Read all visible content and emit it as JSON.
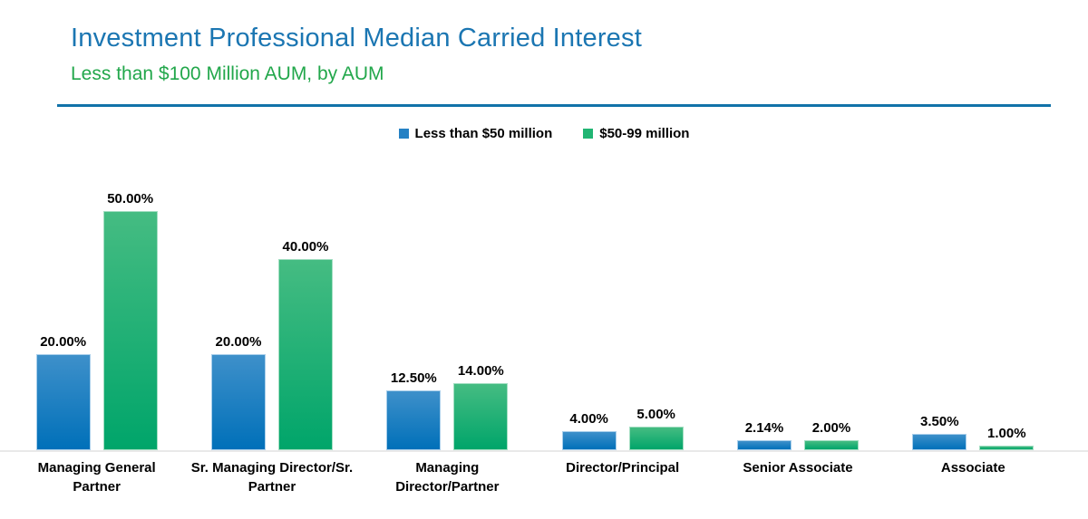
{
  "header": {
    "title": "Investment Professional Median Carried Interest",
    "subtitle": "Less than $100 Million AUM, by AUM",
    "title_color": "#1b76b2",
    "subtitle_color": "#22a74b",
    "divider_color": "#1172a9"
  },
  "chart_data": {
    "type": "bar",
    "title": "Investment Professional Median Carried Interest",
    "subtitle": "Less than $100 Million AUM, by AUM",
    "categories": [
      "Managing General Partner",
      "Sr. Managing Director/Sr. Partner",
      "Managing Director/Partner",
      "Director/Principal",
      "Senior Associate",
      "Associate"
    ],
    "series": [
      {
        "name": "Less than $50 million",
        "values": [
          20.0,
          20.0,
          12.5,
          4.0,
          2.14,
          3.5
        ],
        "labels": [
          "20.00%",
          "20.00%",
          "12.50%",
          "4.00%",
          "2.14%",
          "3.50%"
        ],
        "swatch_color": "#2581c4",
        "gradient_top": "#3e90ca",
        "gradient_bottom": "#0070b9",
        "border_color": "#a9cfeb"
      },
      {
        "name": "$50-99 million",
        "values": [
          50.0,
          40.0,
          14.0,
          5.0,
          2.0,
          1.0
        ],
        "labels": [
          "50.00%",
          "40.00%",
          "14.00%",
          "5.00%",
          "2.00%",
          "1.00%"
        ],
        "swatch_color": "#21b573",
        "gradient_top": "#45bc82",
        "gradient_bottom": "#00a56a",
        "border_color": "#a3dec2"
      }
    ],
    "value_format": "0.00%",
    "ylabel": "",
    "xlabel": "",
    "ylim": [
      0,
      55
    ],
    "grid": false,
    "axis_ticks_visible": false,
    "legend_position": "top-center",
    "data_labels": "above-bars"
  }
}
